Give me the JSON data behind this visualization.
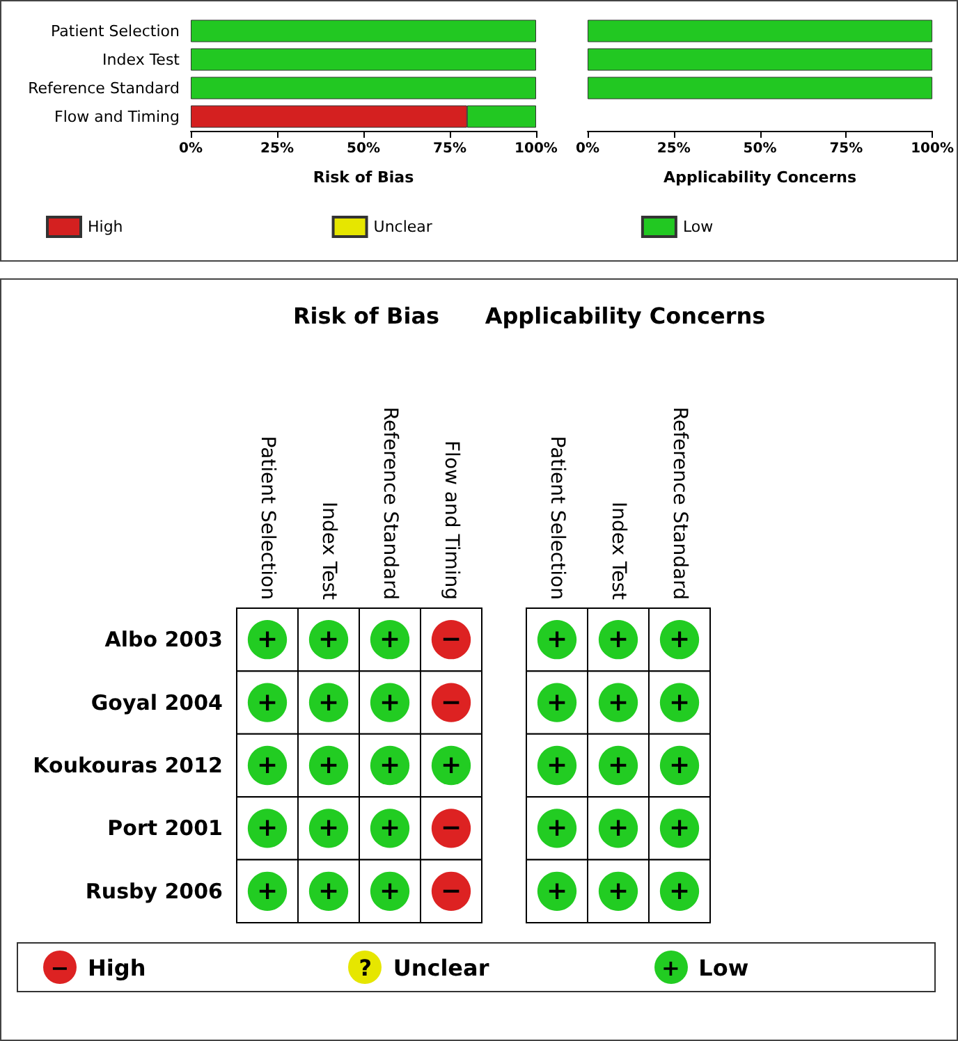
{
  "chart_data": [
    {
      "type": "bar",
      "orientation": "horizontal",
      "stacked": true,
      "categories": [
        "Patient Selection",
        "Index Test",
        "Reference Standard",
        "Flow and Timing"
      ],
      "xlabel": "Risk of Bias",
      "xlim": [
        0,
        100
      ],
      "xticks": [
        {
          "value": 0,
          "label": "0%"
        },
        {
          "value": 25,
          "label": "25%"
        },
        {
          "value": 50,
          "label": "50%"
        },
        {
          "value": 75,
          "label": "75%"
        },
        {
          "value": 100,
          "label": "100%"
        }
      ],
      "legend": "bottom",
      "series": [
        {
          "name": "High",
          "color": "#d42020",
          "values": [
            0,
            0,
            0,
            80
          ]
        },
        {
          "name": "Unclear",
          "color": "#e6e600",
          "values": [
            0,
            0,
            0,
            0
          ]
        },
        {
          "name": "Low",
          "color": "#22c822",
          "values": [
            100,
            100,
            100,
            20
          ]
        }
      ]
    },
    {
      "type": "bar",
      "orientation": "horizontal",
      "stacked": true,
      "categories": [
        null,
        null,
        null,
        null
      ],
      "xlabel": "Applicability Concerns",
      "xlim": [
        0,
        100
      ],
      "xticks": [
        {
          "value": 0,
          "label": "0%"
        },
        {
          "value": 25,
          "label": "25%"
        },
        {
          "value": 50,
          "label": "50%"
        },
        {
          "value": 75,
          "label": "75%"
        },
        {
          "value": 100,
          "label": "100%"
        }
      ],
      "tick_labels": "x",
      "series": [
        {
          "color": "#d42020",
          "values": [
            0,
            0,
            0,
            null
          ]
        },
        {
          "color": "#e6e600",
          "values": [
            0,
            0,
            0,
            null
          ]
        },
        {
          "color": "#22c822",
          "values": [
            100,
            100,
            100,
            null
          ]
        }
      ]
    },
    {
      "type": "heatmap",
      "title": "Risk of Bias",
      "categories": [
        "Patient Selection",
        "Index Test",
        "Reference Standard",
        "Flow and Timing"
      ],
      "y_categories": [
        "Albo 2003",
        "Goyal 2004",
        "Koukouras 2012",
        "Port 2001",
        "Rusby 2006"
      ],
      "cells": [
        [
          "+",
          "+",
          "+",
          "−"
        ],
        [
          "+",
          "+",
          "+",
          "−"
        ],
        [
          "+",
          "+",
          "+",
          "+"
        ],
        [
          "+",
          "+",
          "+",
          "−"
        ],
        [
          "+",
          "+",
          "+",
          "−"
        ]
      ],
      "cticks": [
        {
          "value": "−",
          "label": "High"
        },
        {
          "value": "?",
          "label": "Unclear"
        },
        {
          "value": "+",
          "label": "Low"
        }
      ],
      "colors": [
        "#dd2222",
        "#e6e600",
        "#22cc22"
      ]
    },
    {
      "type": "heatmap",
      "title": "Applicability Concerns",
      "categories": [
        "Patient Selection",
        "Index Test",
        "Reference Standard"
      ],
      "y_categories": [
        null,
        null,
        null,
        null,
        null
      ],
      "tick_labels": "x",
      "cells": [
        [
          "+",
          "+",
          "+"
        ],
        [
          "+",
          "+",
          "+"
        ],
        [
          "+",
          "+",
          "+"
        ],
        [
          "+",
          "+",
          "+"
        ],
        [
          "+",
          "+",
          "+"
        ]
      ]
    }
  ]
}
